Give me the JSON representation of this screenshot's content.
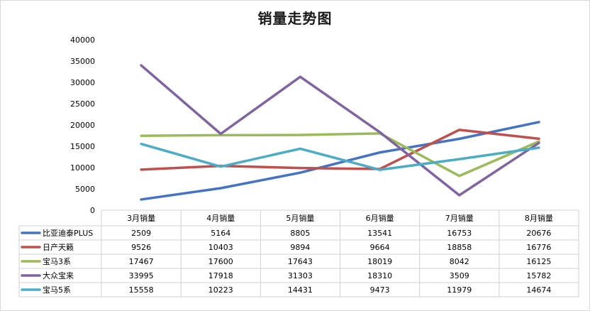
{
  "chart_data": {
    "type": "line",
    "title": "销量走势图",
    "categories": [
      "3月销量",
      "4月销量",
      "5月销量",
      "6月销量",
      "7月销量",
      "8月销量"
    ],
    "ylim": [
      0,
      40000
    ],
    "yticks": [
      "0",
      "5000",
      "10000",
      "15000",
      "20000",
      "25000",
      "30000",
      "35000",
      "40000"
    ],
    "grid": false,
    "legend": "data-table",
    "series": [
      {
        "name": "比亚迪泰PLUS",
        "color": "#4472C4",
        "values": [
          2509,
          5164,
          8805,
          13541,
          16753,
          20676
        ]
      },
      {
        "name": "日产天籁",
        "color": "#C0504D",
        "values": [
          9526,
          10403,
          9894,
          9664,
          18858,
          16776
        ]
      },
      {
        "name": "宝马3系",
        "color": "#9BBB59",
        "values": [
          17467,
          17600,
          17643,
          18019,
          8042,
          16125
        ]
      },
      {
        "name": "大众宝来",
        "color": "#8064A2",
        "values": [
          33995,
          17918,
          31303,
          18310,
          3509,
          15782
        ]
      },
      {
        "name": "宝马5系",
        "color": "#4BACC6",
        "values": [
          15558,
          10223,
          14431,
          9473,
          11979,
          14674
        ]
      }
    ]
  }
}
